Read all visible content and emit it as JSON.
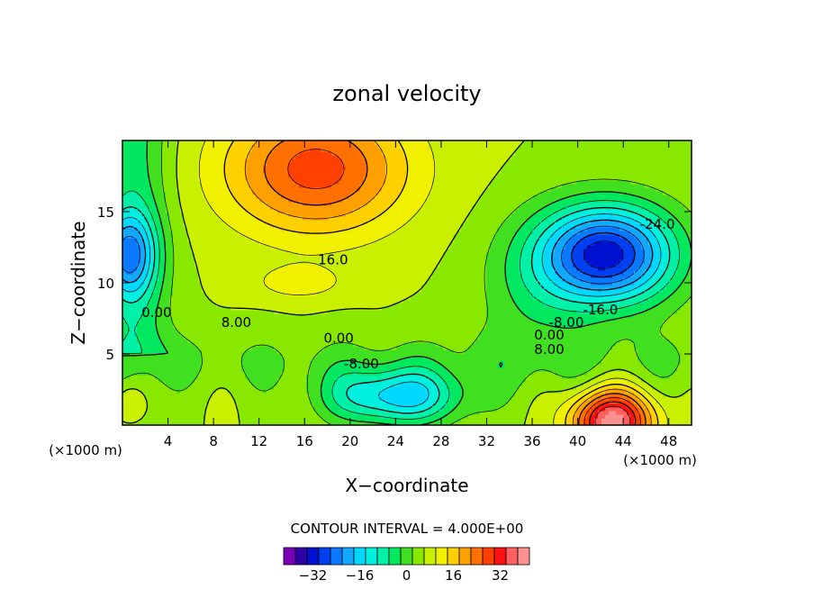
{
  "chart_data": {
    "type": "heatmap",
    "title": "zonal velocity",
    "xlabel": "X−coordinate",
    "ylabel": "Z−coordinate",
    "x_unit": "(×1000 m)",
    "y_unit": "(×1000 m)",
    "xlim": [
      0,
      50
    ],
    "ylim": [
      0,
      20
    ],
    "x_ticks": [
      "4",
      "8",
      "12",
      "16",
      "20",
      "24",
      "28",
      "32",
      "36",
      "40",
      "44",
      "48"
    ],
    "y_ticks": [
      "5",
      "10",
      "15"
    ],
    "contour_interval_label": "CONTOUR INTERVAL = 4.000E+00",
    "contour_interval": 4,
    "value_range": [
      -40,
      40
    ],
    "features": [
      {
        "x": 17,
        "z": 18,
        "value": 28,
        "kind": "max"
      },
      {
        "x": 15.5,
        "z": 10,
        "value": 12,
        "kind": "local"
      },
      {
        "x": 42.5,
        "z": 12,
        "value": -32,
        "kind": "min"
      },
      {
        "x": 43,
        "z": 0.3,
        "value": 40,
        "kind": "max"
      },
      {
        "x": 0.5,
        "z": 12,
        "value": -16,
        "kind": "local"
      },
      {
        "x": 24,
        "z": 2,
        "value": -16,
        "kind": "min"
      },
      {
        "x": 0.5,
        "z": 1.5,
        "value": 12,
        "kind": "local"
      }
    ],
    "contour_labels": [
      {
        "text": "16.0",
        "x": 18.5,
        "z": 11.3
      },
      {
        "text": "0.00",
        "x": 3,
        "z": 7.6
      },
      {
        "text": "8.00",
        "x": 10,
        "z": 6.9
      },
      {
        "text": "0.00",
        "x": 19,
        "z": 5.8
      },
      {
        "text": "-8.00",
        "x": 21,
        "z": 4
      },
      {
        "text": "-24.0",
        "x": 47,
        "z": 13.8
      },
      {
        "text": "-16.0",
        "x": 42,
        "z": 7.8
      },
      {
        "text": "-8.00",
        "x": 39,
        "z": 6.9
      },
      {
        "text": "0.00",
        "x": 37.5,
        "z": 6
      },
      {
        "text": "8.00",
        "x": 37.5,
        "z": 5
      }
    ],
    "colorbar": {
      "tick_labels": [
        "−32",
        "−16",
        "0",
        "16",
        "32"
      ],
      "tick_values": [
        -32,
        -16,
        0,
        16,
        32
      ],
      "colors": [
        "#7a00b8",
        "#2e00a8",
        "#0010d0",
        "#0040f0",
        "#0a78ff",
        "#12a8ff",
        "#00d8ff",
        "#00f0e0",
        "#00f0a8",
        "#00e860",
        "#40e020",
        "#88e800",
        "#c8f000",
        "#f0f000",
        "#ffd000",
        "#ffa000",
        "#ff7000",
        "#ff4000",
        "#ff1010",
        "#ff6060",
        "#ff9090"
      ]
    }
  }
}
